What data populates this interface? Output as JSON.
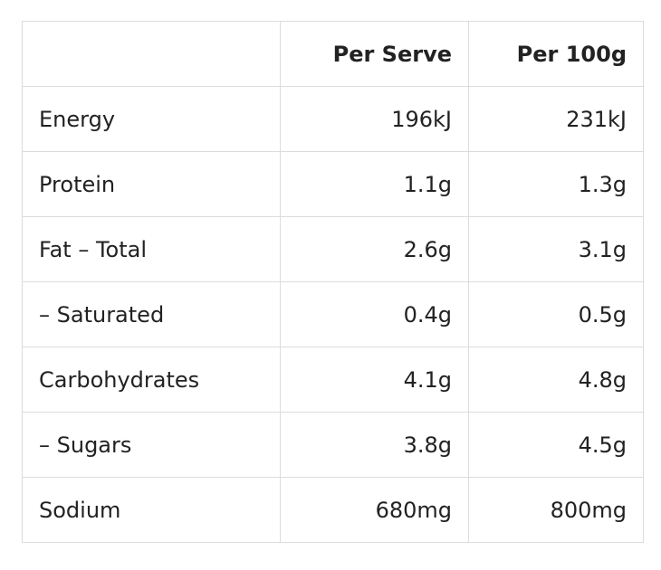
{
  "table": {
    "headers": [
      "",
      "Per Serve",
      "Per 100g"
    ],
    "rows": [
      [
        "Energy",
        "196kJ",
        "231kJ"
      ],
      [
        "Protein",
        "1.1g",
        "1.3g"
      ],
      [
        "Fat – Total",
        "2.6g",
        "3.1g"
      ],
      [
        "– Saturated",
        "0.4g",
        "0.5g"
      ],
      [
        "Carbohydrates",
        "4.1g",
        "4.8g"
      ],
      [
        "– Sugars",
        "3.8g",
        "4.5g"
      ],
      [
        "Sodium",
        "680mg",
        "800mg"
      ]
    ]
  }
}
